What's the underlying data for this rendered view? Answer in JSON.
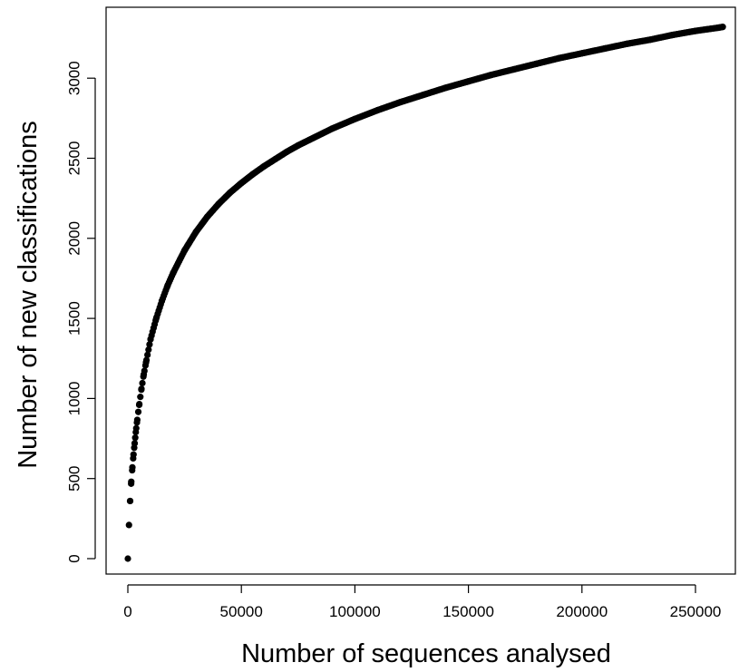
{
  "chart_data": {
    "type": "scatter",
    "title": "",
    "xlabel": "Number of sequences analysed",
    "ylabel": "Number of new classifications",
    "xlim": [
      -10000,
      270000
    ],
    "ylim": [
      -100,
      3400
    ],
    "x_ticks": [
      0,
      50000,
      100000,
      150000,
      200000,
      250000
    ],
    "x_tick_labels": [
      "0",
      "50000",
      "100000",
      "150000",
      "200000",
      "250000"
    ],
    "y_ticks": [
      0,
      500,
      1000,
      1500,
      2000,
      2500,
      3000
    ],
    "y_tick_labels": [
      "0",
      "500",
      "1000",
      "1500",
      "2000",
      "2500",
      "3000"
    ],
    "grid": false,
    "point_color": "#000000",
    "series": [
      {
        "x": [
          0,
          500,
          1000,
          1500,
          2000,
          2500,
          3000,
          3500,
          4000,
          5000,
          6000,
          7000,
          8000,
          10000,
          12500,
          15000,
          17500,
          20000,
          25000,
          30000,
          35000,
          40000,
          45000,
          50000,
          55000,
          60000,
          65000,
          70000,
          75000,
          80000,
          90000,
          100000,
          110000,
          120000,
          130000,
          140000,
          150000,
          160000,
          170000,
          180000,
          190000,
          200000,
          210000,
          220000,
          230000,
          240000,
          250000,
          260000,
          262000
        ],
        "y": [
          0,
          210,
          360,
          480,
          570,
          650,
          720,
          790,
          850,
          960,
          1060,
          1150,
          1225,
          1370,
          1500,
          1610,
          1705,
          1785,
          1925,
          2040,
          2135,
          2215,
          2285,
          2345,
          2400,
          2450,
          2495,
          2540,
          2580,
          2615,
          2685,
          2745,
          2800,
          2850,
          2895,
          2940,
          2980,
          3020,
          3055,
          3090,
          3125,
          3155,
          3185,
          3215,
          3240,
          3270,
          3295,
          3315,
          3320
        ]
      }
    ]
  }
}
